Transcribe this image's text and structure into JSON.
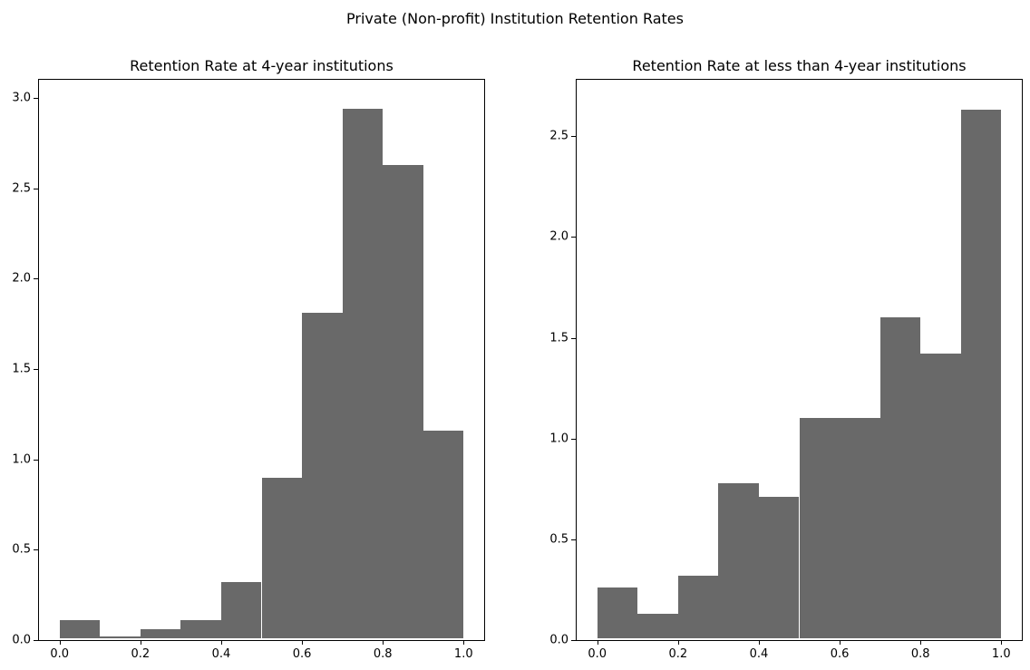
{
  "figure": {
    "title": "Private (Non-profit) Institution Retention Rates",
    "background_color": "#ffffff",
    "spine_color": "#000000",
    "text_color": "#000000"
  },
  "chart_data": [
    {
      "type": "bar",
      "subtype": "histogram",
      "title": "Retention Rate at 4-year institutions",
      "bar_color": "#696969",
      "bins": 10,
      "bin_edges": [
        0.0,
        0.1,
        0.2,
        0.3,
        0.4,
        0.5,
        0.6,
        0.7,
        0.8,
        0.9,
        1.0
      ],
      "values": [
        0.11,
        0.02,
        0.06,
        0.11,
        0.32,
        0.9,
        1.81,
        2.94,
        2.63,
        1.16
      ],
      "xlabel": "",
      "ylabel": "",
      "xlim": [
        -0.051,
        1.051
      ],
      "ylim": [
        0,
        3.1
      ],
      "grid": false,
      "legend": null,
      "xticks": [
        0.0,
        0.2,
        0.4,
        0.6,
        0.8,
        1.0
      ],
      "xtick_labels": [
        "0.0",
        "0.2",
        "0.4",
        "0.6",
        "0.8",
        "1.0"
      ],
      "yticks": [
        0.0,
        0.5,
        1.0,
        1.5,
        2.0,
        2.5,
        3.0
      ],
      "ytick_labels": [
        "0.0",
        "0.5",
        "1.0",
        "1.5",
        "2.0",
        "2.5",
        "3.0"
      ]
    },
    {
      "type": "bar",
      "subtype": "histogram",
      "title": "Retention Rate at less than 4-year institutions",
      "bar_color": "#696969",
      "bins": 10,
      "bin_edges": [
        0.0,
        0.1,
        0.2,
        0.3,
        0.4,
        0.5,
        0.6,
        0.7,
        0.8,
        0.9,
        1.0
      ],
      "values": [
        0.26,
        0.13,
        0.32,
        0.78,
        0.71,
        1.1,
        1.1,
        1.6,
        1.42,
        2.63
      ],
      "xlabel": "",
      "ylabel": "",
      "xlim": [
        -0.051,
        1.051
      ],
      "ylim": [
        0,
        2.78
      ],
      "grid": false,
      "legend": null,
      "xticks": [
        0.0,
        0.2,
        0.4,
        0.6,
        0.8,
        1.0
      ],
      "xtick_labels": [
        "0.0",
        "0.2",
        "0.4",
        "0.6",
        "0.8",
        "1.0"
      ],
      "yticks": [
        0.0,
        0.5,
        1.0,
        1.5,
        2.0,
        2.5
      ],
      "ytick_labels": [
        "0.0",
        "0.5",
        "1.0",
        "1.5",
        "2.0",
        "2.5"
      ]
    }
  ]
}
